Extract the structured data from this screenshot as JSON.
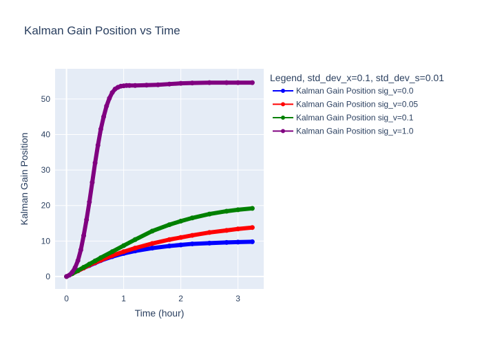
{
  "chart_data": {
    "type": "line",
    "title": "Kalman Gain Position vs Time",
    "xlabel": "Time (hour)",
    "ylabel": "Kalman Gain Position",
    "xlim": [
      -0.2,
      3.45
    ],
    "ylim": [
      -3.5,
      58.5
    ],
    "x_ticks": [
      0,
      1,
      2,
      3
    ],
    "y_ticks": [
      0,
      10,
      20,
      30,
      40,
      50
    ],
    "grid": true,
    "legend_title": "Legend, std_dev_x=0.1, std_dev_s=0.01",
    "legend_position": "right",
    "series": [
      {
        "name": "Kalman Gain Position sig_v=0.0",
        "color": "#0000ff",
        "x": [
          0,
          0.1,
          0.2,
          0.3,
          0.4,
          0.5,
          0.6,
          0.8,
          1.0,
          1.2,
          1.5,
          1.8,
          2.0,
          2.2,
          2.5,
          2.8,
          3.0,
          3.25
        ],
        "y": [
          0,
          0.8,
          1.6,
          2.4,
          3.1,
          3.8,
          4.5,
          5.6,
          6.5,
          7.2,
          8.0,
          8.6,
          8.9,
          9.2,
          9.4,
          9.6,
          9.7,
          9.8
        ]
      },
      {
        "name": "Kalman Gain Position sig_v=0.05",
        "color": "#ff0000",
        "x": [
          0,
          0.1,
          0.2,
          0.3,
          0.4,
          0.5,
          0.6,
          0.8,
          1.0,
          1.2,
          1.5,
          1.8,
          2.0,
          2.2,
          2.5,
          2.8,
          3.0,
          3.25
        ],
        "y": [
          0,
          0.8,
          1.6,
          2.4,
          3.2,
          3.9,
          4.6,
          5.9,
          7.0,
          8.0,
          9.3,
          10.4,
          11.0,
          11.6,
          12.4,
          13.0,
          13.4,
          13.8
        ]
      },
      {
        "name": "Kalman Gain Position sig_v=0.1",
        "color": "#008000",
        "x": [
          0,
          0.1,
          0.2,
          0.3,
          0.4,
          0.5,
          0.6,
          0.8,
          1.0,
          1.2,
          1.5,
          1.8,
          2.0,
          2.2,
          2.5,
          2.8,
          3.0,
          3.25
        ],
        "y": [
          0,
          0.8,
          1.7,
          2.6,
          3.5,
          4.4,
          5.3,
          7.0,
          8.7,
          10.4,
          12.8,
          14.6,
          15.6,
          16.5,
          17.6,
          18.4,
          18.8,
          19.2
        ]
      },
      {
        "name": "Kalman Gain Position sig_v=1.0",
        "color": "#800080",
        "x": [
          0,
          0.05,
          0.1,
          0.15,
          0.2,
          0.25,
          0.3,
          0.35,
          0.4,
          0.45,
          0.5,
          0.55,
          0.6,
          0.65,
          0.7,
          0.75,
          0.8,
          0.85,
          0.9,
          0.95,
          1.0,
          1.05,
          1.1,
          1.2,
          1.4,
          1.6,
          1.8,
          2.0,
          2.2,
          2.5,
          2.8,
          3.0,
          3.25
        ],
        "y": [
          0,
          0.4,
          1.2,
          2.5,
          4.5,
          7.5,
          11.5,
          16.0,
          21.0,
          26.5,
          32.0,
          37.0,
          41.5,
          45.0,
          48.0,
          50.2,
          51.8,
          52.8,
          53.3,
          53.6,
          53.7,
          53.8,
          53.8,
          53.8,
          53.9,
          54.0,
          54.2,
          54.4,
          54.5,
          54.6,
          54.6,
          54.6,
          54.6
        ]
      }
    ]
  }
}
